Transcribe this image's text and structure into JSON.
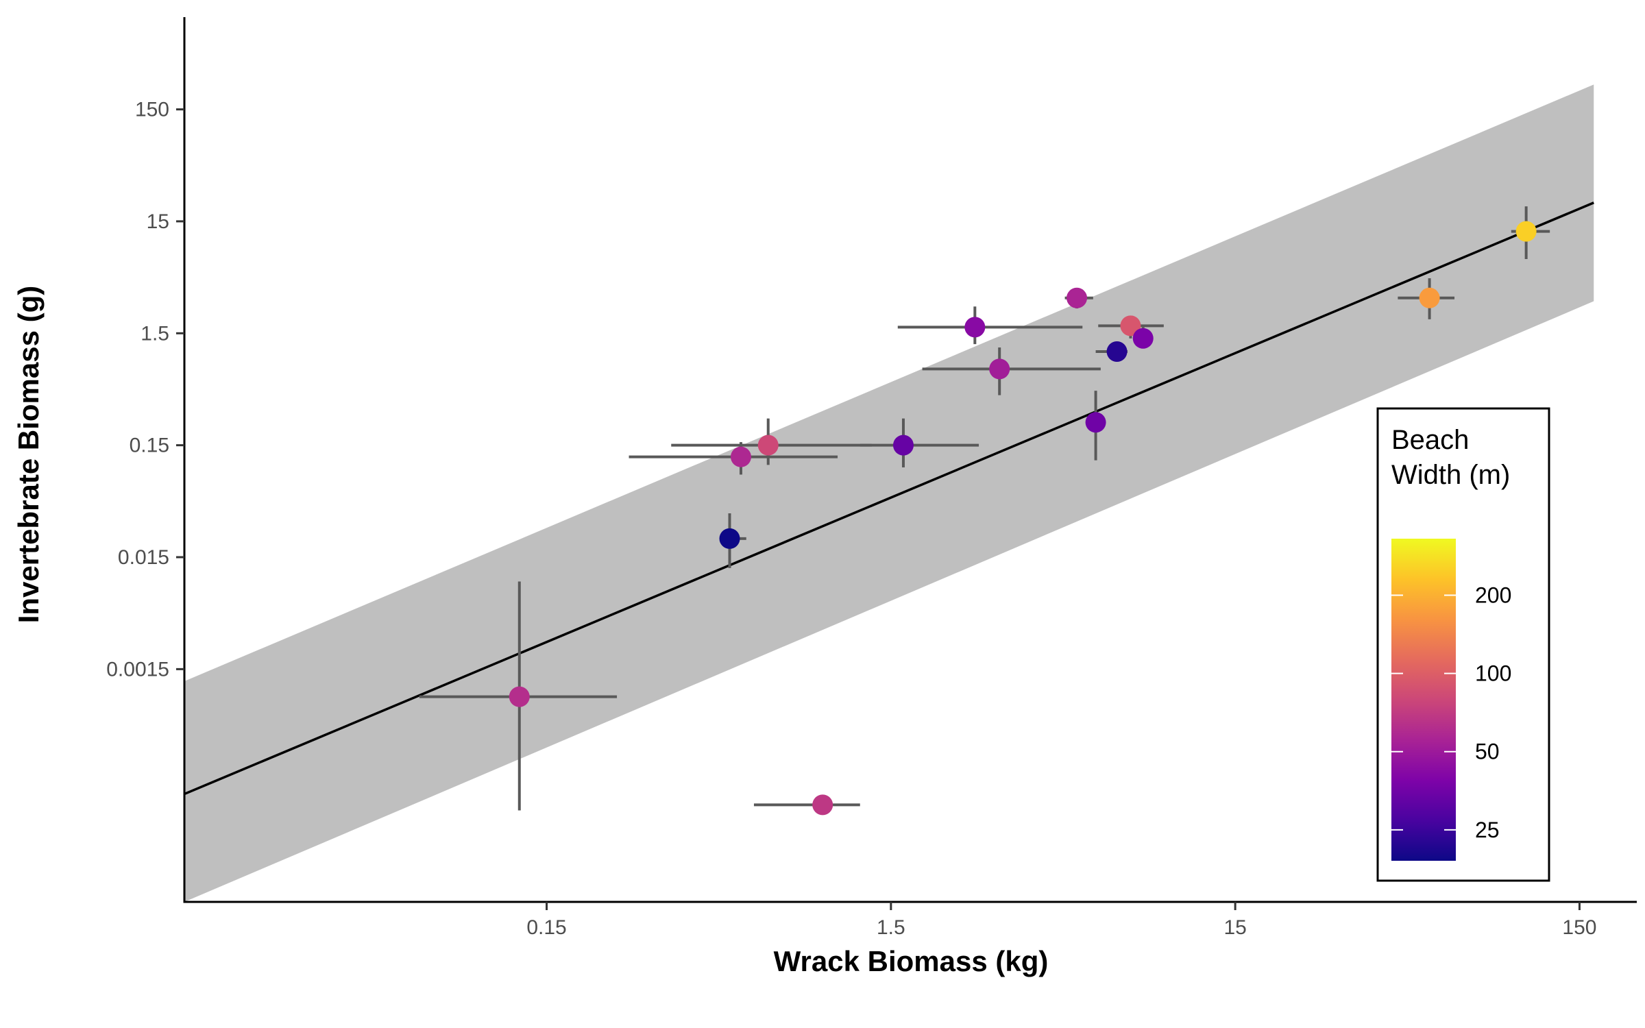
{
  "chart_data": {
    "type": "scatter",
    "xlabel": "Wrack Biomass (kg)",
    "ylabel": "Invertebrate Biomass (g)",
    "x_scale": "log10",
    "y_scale": "log10",
    "xlim": [
      0.0133,
      220
    ],
    "ylim": [
      1.25e-05,
      1000
    ],
    "x_ticks": [
      {
        "value": 0.15,
        "label": "0.15"
      },
      {
        "value": 1.5,
        "label": "1.5"
      },
      {
        "value": 15,
        "label": "15"
      },
      {
        "value": 150,
        "label": "150"
      }
    ],
    "y_ticks": [
      {
        "value": 0.0015,
        "label": "0.0015"
      },
      {
        "value": 0.015,
        "label": "0.015"
      },
      {
        "value": 0.15,
        "label": "0.15"
      },
      {
        "value": 1.5,
        "label": "1.5"
      },
      {
        "value": 15,
        "label": "15"
      },
      {
        "value": 150,
        "label": "150"
      }
    ],
    "grid": false,
    "regression": {
      "x_range": [
        0.0133,
        165
      ],
      "line_y": [
        0.000115,
        22
      ],
      "band_lower": [
        1.25e-05,
        2.9
      ],
      "band_upper": [
        0.00117,
        250
      ]
    },
    "points": [
      {
        "x": 0.125,
        "y": 0.00085,
        "x_err": [
          0.064,
          0.24
        ],
        "y_err": [
          8.2e-05,
          0.0091
        ],
        "width": 62
      },
      {
        "x": 0.55,
        "y": 0.118,
        "x_err": [
          0.26,
          1.05
        ],
        "y_err": [
          0.082,
          0.16
        ],
        "width": 58
      },
      {
        "x": 0.66,
        "y": 0.15,
        "x_err": [
          0.345,
          1.32
        ],
        "y_err": [
          0.1,
          0.26
        ],
        "width": 80
      },
      {
        "x": 0.51,
        "y": 0.022,
        "x_err": [
          0.49,
          0.57
        ],
        "y_err": [
          0.012,
          0.037
        ],
        "width": 18
      },
      {
        "x": 0.95,
        "y": 9.2e-05,
        "x_err": [
          0.6,
          1.22
        ],
        "y_err": [
          9.2e-05,
          9.2e-05
        ],
        "width": 68
      },
      {
        "x": 1.63,
        "y": 0.15,
        "x_err": [
          1.22,
          2.7
        ],
        "y_err": [
          0.095,
          0.26
        ],
        "width": 33
      },
      {
        "x": 2.63,
        "y": 1.7,
        "x_err": [
          1.57,
          5.4
        ],
        "y_err": [
          1.2,
          2.6
        ],
        "width": 42
      },
      {
        "x": 3.1,
        "y": 0.72,
        "x_err": [
          1.85,
          6.1
        ],
        "y_err": [
          0.42,
          1.12
        ],
        "width": 52
      },
      {
        "x": 5.2,
        "y": 3.1,
        "x_err": [
          4.8,
          5.8
        ],
        "y_err": [
          2.5,
          3.7
        ],
        "width": 56
      },
      {
        "x": 5.9,
        "y": 0.24,
        "x_err": [
          5.8,
          6.0
        ],
        "y_err": [
          0.11,
          0.46
        ],
        "width": 35
      },
      {
        "x": 6.8,
        "y": 1.03,
        "x_err": [
          5.9,
          7.3
        ],
        "y_err": [
          0.86,
          1.2
        ],
        "width": 22
      },
      {
        "x": 7.45,
        "y": 1.75,
        "x_err": [
          6.0,
          9.3
        ],
        "y_err": [
          1.35,
          2.1
        ],
        "width": 92
      },
      {
        "x": 8.1,
        "y": 1.35,
        "x_err": [
          7.85,
          8.4
        ],
        "y_err": [
          1.1,
          1.7
        ],
        "width": 38
      },
      {
        "x": 55,
        "y": 3.1,
        "x_err": [
          44.5,
          65
        ],
        "y_err": [
          2.0,
          4.65
        ],
        "width": 170
      },
      {
        "x": 105,
        "y": 12.2,
        "x_err": [
          95,
          123
        ],
        "y_err": [
          6.9,
          20.4
        ],
        "width": 250
      }
    ],
    "colorbar": {
      "title": [
        "Beach",
        "Width (m)"
      ],
      "scale": "log10",
      "range": [
        19,
        330
      ],
      "ticks": [
        {
          "value": 25,
          "label": "25"
        },
        {
          "value": 50,
          "label": "50"
        },
        {
          "value": 100,
          "label": "100"
        },
        {
          "value": 200,
          "label": "200"
        }
      ],
      "palette": "plasma",
      "placement": "right-inside"
    },
    "colors": {
      "band": "#bfbfbf",
      "line": "#000000",
      "errorbar": "#595959",
      "axis": "#000000"
    }
  }
}
